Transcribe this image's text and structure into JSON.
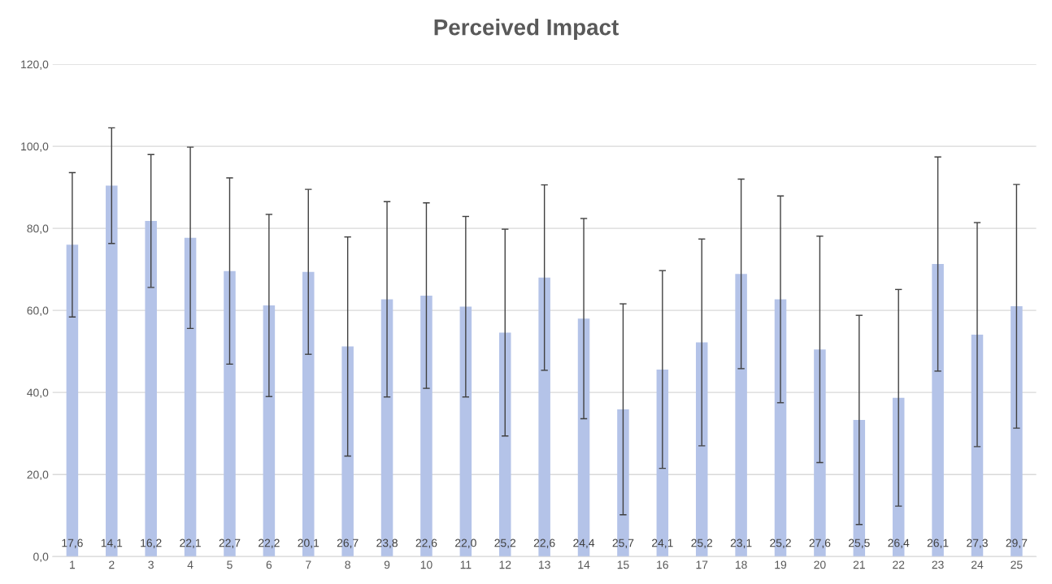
{
  "chart_data": {
    "type": "bar",
    "title": "Perceived Impact",
    "categories": [
      "1",
      "2",
      "3",
      "4",
      "5",
      "6",
      "7",
      "8",
      "9",
      "10",
      "11",
      "12",
      "13",
      "14",
      "15",
      "16",
      "17",
      "18",
      "19",
      "20",
      "21",
      "22",
      "23",
      "24",
      "25"
    ],
    "values": [
      76.0,
      90.4,
      81.8,
      77.7,
      69.6,
      61.2,
      69.4,
      51.2,
      62.7,
      63.6,
      60.9,
      54.6,
      68.0,
      58.0,
      35.9,
      45.6,
      52.2,
      68.9,
      62.7,
      50.5,
      33.3,
      38.7,
      71.3,
      54.1,
      61.0
    ],
    "errors": [
      17.6,
      14.1,
      16.2,
      22.1,
      22.7,
      22.2,
      20.1,
      26.7,
      23.8,
      22.6,
      22.0,
      25.2,
      22.6,
      24.4,
      25.7,
      24.1,
      25.2,
      23.1,
      25.2,
      27.6,
      25.5,
      26.4,
      26.1,
      27.3,
      29.7
    ],
    "annotations": [
      {
        "text": "17,6",
        "x": "1",
        "y": 0
      },
      {
        "text": "14,1",
        "x": "2",
        "y": 0
      },
      {
        "text": "16,2",
        "x": "3",
        "y": 0
      },
      {
        "text": "22,1",
        "x": "4",
        "y": 0
      },
      {
        "text": "22,7",
        "x": "5",
        "y": 0
      },
      {
        "text": "22,2",
        "x": "6",
        "y": 0
      },
      {
        "text": "20,1",
        "x": "7",
        "y": 0
      },
      {
        "text": "26,7",
        "x": "8",
        "y": 0
      },
      {
        "text": "23,8",
        "x": "9",
        "y": 0
      },
      {
        "text": "22,6",
        "x": "10",
        "y": 0
      },
      {
        "text": "22,0",
        "x": "11",
        "y": 0
      },
      {
        "text": "25,2",
        "x": "12",
        "y": 0
      },
      {
        "text": "22,6",
        "x": "13",
        "y": 0
      },
      {
        "text": "24,4",
        "x": "14",
        "y": 0
      },
      {
        "text": "25,7",
        "x": "15",
        "y": 0
      },
      {
        "text": "24,1",
        "x": "16",
        "y": 0
      },
      {
        "text": "25,2",
        "x": "17",
        "y": 0
      },
      {
        "text": "23,1",
        "x": "18",
        "y": 0
      },
      {
        "text": "25,2",
        "x": "19",
        "y": 0
      },
      {
        "text": "27,6",
        "x": "20",
        "y": 0
      },
      {
        "text": "25,5",
        "x": "21",
        "y": 0
      },
      {
        "text": "26,4",
        "x": "22",
        "y": 0
      },
      {
        "text": "26,1",
        "x": "23",
        "y": 0
      },
      {
        "text": "27,3",
        "x": "24",
        "y": 0
      },
      {
        "text": "29,7",
        "x": "25",
        "y": 0
      }
    ],
    "color": "#b4c3e8",
    "ylim": [
      0,
      120
    ],
    "yticks": [
      {
        "value": 0,
        "label": "0,0"
      },
      {
        "value": 20,
        "label": "20,0"
      },
      {
        "value": 40,
        "label": "40,0"
      },
      {
        "value": 60,
        "label": "60,0"
      },
      {
        "value": 80,
        "label": "80,0"
      },
      {
        "value": 100,
        "label": "100,0"
      },
      {
        "value": 120,
        "label": "120,0"
      }
    ],
    "grid": "y"
  }
}
